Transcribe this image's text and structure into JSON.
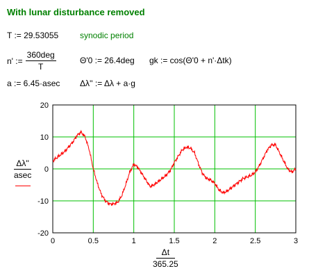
{
  "title": "With lunar disturbance removed",
  "definitions": {
    "T_lhs": "T := 29.53055",
    "T_comment": "synodic period",
    "n_lhs": "n' :=",
    "n_num": "360deg",
    "n_den": "T",
    "theta_def": "Θ'0 := 26.4deg",
    "g_def": "gk := cos(Θ'0 + n'·Δtk)",
    "a_def": "a := 6.45·asec",
    "dl_def": "Δλ'' := Δλ + a·g"
  },
  "axis_labels": {
    "y_num": "Δλ''",
    "y_den": "asec",
    "x_num": "Δt",
    "x_den": "365.25"
  },
  "colors": {
    "accent_green": "#008000",
    "grid": "#00c000",
    "series": "#ff0000"
  },
  "chart_data": {
    "type": "line",
    "xlim": [
      0,
      3
    ],
    "ylim": [
      -20,
      20
    ],
    "grid": true,
    "x_ticks": [
      "0",
      "0.5",
      "1",
      "1.5",
      "2",
      "2.5",
      "3"
    ],
    "y_ticks": [
      "20",
      "10",
      "0",
      "-10",
      "-20"
    ],
    "series": [
      {
        "x": [
          0,
          0.05,
          0.1,
          0.15,
          0.2,
          0.25,
          0.3,
          0.35,
          0.4,
          0.45,
          0.5,
          0.55,
          0.6,
          0.65,
          0.7,
          0.75,
          0.8,
          0.85,
          0.9,
          0.95,
          1.0,
          1.05,
          1.1,
          1.15,
          1.2,
          1.25,
          1.3,
          1.35,
          1.4,
          1.45,
          1.5,
          1.55,
          1.6,
          1.65,
          1.7,
          1.75,
          1.8,
          1.85,
          1.9,
          1.95,
          2.0,
          2.05,
          2.1,
          2.15,
          2.2,
          2.25,
          2.3,
          2.35,
          2.4,
          2.45,
          2.5,
          2.55,
          2.6,
          2.65,
          2.7,
          2.75,
          2.8,
          2.85,
          2.9,
          2.95,
          3.0
        ],
        "values": [
          2.5,
          3.5,
          4.5,
          5.5,
          7,
          8.5,
          10.5,
          11.5,
          10,
          6,
          0,
          -4.5,
          -8,
          -10,
          -11,
          -11,
          -10.5,
          -8.5,
          -5,
          -1,
          1.5,
          0.5,
          -1.5,
          -3.5,
          -5.5,
          -5,
          -4,
          -3,
          -2,
          -0.5,
          2,
          4,
          6,
          6.8,
          6.5,
          5,
          1.5,
          -1.5,
          -3,
          -3.5,
          -4.5,
          -6.5,
          -7.5,
          -7,
          -6,
          -5,
          -4,
          -3,
          -2.5,
          -2,
          -1,
          1,
          3.5,
          6,
          7.5,
          7.5,
          5,
          2.5,
          0,
          -1,
          0
        ]
      }
    ]
  }
}
